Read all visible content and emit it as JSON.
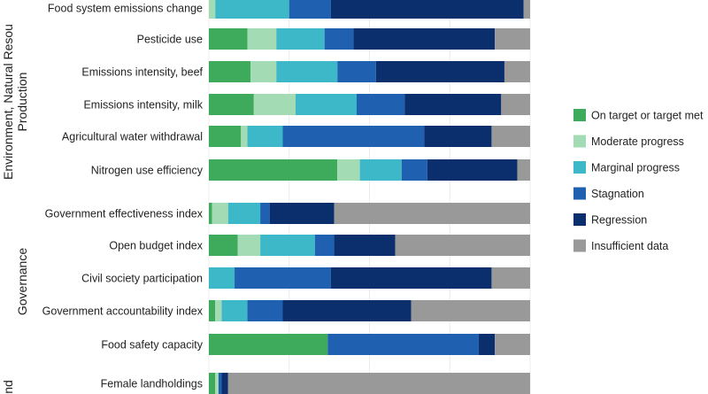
{
  "chart_data": {
    "type": "bar",
    "orientation": "horizontal",
    "stacked": true,
    "xlim": [
      0,
      100
    ],
    "grid": true,
    "legend_position": "right",
    "groups": [
      {
        "label": "Environment, Natural Resou\nProduction",
        "rows": [
          0,
          5
        ]
      },
      {
        "label": "Governance",
        "rows": [
          6,
          10
        ]
      },
      {
        "label": "nd",
        "rows": [
          11,
          11
        ]
      }
    ],
    "categories": [
      "Food system emissions change",
      "Pesticide use",
      "Emissions intensity, beef",
      "Emissions intensity, milk",
      "Agricultural water withdrawal",
      "Nitrogen use efficiency",
      "Government effectiveness index",
      "Open budget index",
      "Civil society participation",
      "Government accountability index",
      "Food safety capacity",
      "Female landholdings"
    ],
    "series": [
      {
        "name": "On target or target met",
        "color": "#3dab5b",
        "values": [
          0,
          12,
          13,
          14,
          10,
          40,
          1,
          9,
          0,
          2,
          37,
          2
        ]
      },
      {
        "name": "Moderate progress",
        "color": "#a3dcb4",
        "values": [
          2,
          9,
          8,
          13,
          2,
          7,
          5,
          7,
          0,
          2,
          0,
          1
        ]
      },
      {
        "name": "Marginal progress",
        "color": "#3db8c9",
        "values": [
          23,
          15,
          19,
          19,
          11,
          13,
          10,
          17,
          8,
          8,
          0,
          0
        ]
      },
      {
        "name": "Stagnation",
        "color": "#2060b0",
        "values": [
          13,
          9,
          12,
          15,
          44,
          8,
          3,
          6,
          30,
          11,
          47,
          1
        ]
      },
      {
        "name": "Regression",
        "color": "#0b2f6d",
        "values": [
          60,
          44,
          40,
          30,
          21,
          28,
          20,
          19,
          50,
          40,
          5,
          2
        ]
      },
      {
        "name": "Insufficient data",
        "color": "#999999",
        "values": [
          2,
          11,
          8,
          9,
          12,
          4,
          61,
          42,
          12,
          37,
          11,
          94
        ]
      }
    ]
  }
}
